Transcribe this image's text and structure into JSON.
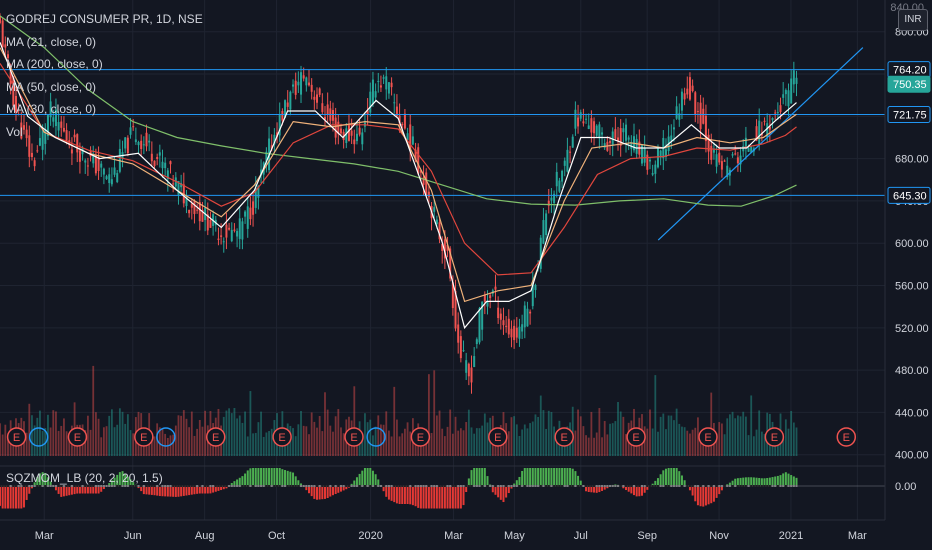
{
  "header": {
    "symbol_line": "GODREJ CONSUMER PR, 1D, NSE",
    "currency": "INR",
    "top_price_label": "840.00"
  },
  "indicators": [
    {
      "label": "MA (21, close, 0)",
      "color": "#ffffff"
    },
    {
      "label": "MA (200, close, 0)",
      "color": "#7fbf6a"
    },
    {
      "label": "MA (50, close, 0)",
      "color": "#e0463d"
    },
    {
      "label": "MA (30, close, 0)",
      "color": "#f0b27a"
    },
    {
      "label": "Vol",
      "color": "#d1d4dc"
    }
  ],
  "oscillator": {
    "label": "SQZMOM_LB (20, 2, 20, 1.5)",
    "zero_label": "0.00"
  },
  "colors": {
    "background": "#131722",
    "up": "#26a69a",
    "down": "#ef5350",
    "hline": "#2196f3",
    "grid": "#1f2431",
    "text": "#d1d4dc",
    "ma21": "#ffffff",
    "ma200": "#7fbf6a",
    "ma50": "#e0463d",
    "ma30": "#f0b27a"
  },
  "chart_data": {
    "type": "candlestick",
    "title": "GODREJ CONSUMER PR, 1D, NSE",
    "y_ticks": [
      400,
      440,
      480,
      520,
      560,
      600,
      640,
      680,
      720,
      760,
      800
    ],
    "ylim": [
      395,
      830
    ],
    "x_labels": [
      {
        "label": "Mar",
        "t": 0.08
      },
      {
        "label": "Jun",
        "t": 0.24
      },
      {
        "label": "Aug",
        "t": 0.37
      },
      {
        "label": "Oct",
        "t": 0.5
      },
      {
        "label": "2020",
        "t": 0.67
      },
      {
        "label": "Mar",
        "t": 0.82
      },
      {
        "label": "May",
        "t": 0.93
      },
      {
        "label": "Jul",
        "t": 1.05
      },
      {
        "label": "Sep",
        "t": 1.17
      },
      {
        "label": "Nov",
        "t": 1.3
      },
      {
        "label": "2021",
        "t": 1.43
      },
      {
        "label": "Mar",
        "t": 1.55
      }
    ],
    "horizontal_levels": [
      {
        "value": 764.2,
        "label": "764.20",
        "style": "outline"
      },
      {
        "value": 750.35,
        "label": "750.35",
        "style": "green"
      },
      {
        "value": 721.75,
        "label": "721.75",
        "style": "outline"
      },
      {
        "value": 645.3,
        "label": "645.30",
        "style": "outline"
      }
    ],
    "trendline": {
      "start": {
        "t": 1.19,
        "price": 603
      },
      "end": {
        "t": 1.56,
        "price": 785
      }
    },
    "price_path": [
      [
        0.0,
        805
      ],
      [
        0.03,
        722
      ],
      [
        0.06,
        675
      ],
      [
        0.09,
        725
      ],
      [
        0.12,
        700
      ],
      [
        0.16,
        680
      ],
      [
        0.2,
        660
      ],
      [
        0.24,
        705
      ],
      [
        0.27,
        690
      ],
      [
        0.3,
        670
      ],
      [
        0.34,
        640
      ],
      [
        0.37,
        625
      ],
      [
        0.4,
        610
      ],
      [
        0.43,
        610
      ],
      [
        0.46,
        640
      ],
      [
        0.49,
        695
      ],
      [
        0.52,
        735
      ],
      [
        0.55,
        760
      ],
      [
        0.58,
        730
      ],
      [
        0.61,
        705
      ],
      [
        0.65,
        700
      ],
      [
        0.68,
        755
      ],
      [
        0.7,
        750
      ],
      [
        0.72,
        720
      ],
      [
        0.74,
        700
      ],
      [
        0.77,
        655
      ],
      [
        0.79,
        615
      ],
      [
        0.81,
        585
      ],
      [
        0.83,
        500
      ],
      [
        0.85,
        470
      ],
      [
        0.87,
        540
      ],
      [
        0.89,
        555
      ],
      [
        0.91,
        525
      ],
      [
        0.93,
        510
      ],
      [
        0.96,
        545
      ],
      [
        0.99,
        640
      ],
      [
        1.02,
        670
      ],
      [
        1.04,
        720
      ],
      [
        1.07,
        710
      ],
      [
        1.1,
        695
      ],
      [
        1.13,
        705
      ],
      [
        1.15,
        690
      ],
      [
        1.18,
        670
      ],
      [
        1.21,
        700
      ],
      [
        1.24,
        750
      ],
      [
        1.27,
        715
      ],
      [
        1.29,
        680
      ],
      [
        1.31,
        670
      ],
      [
        1.34,
        685
      ],
      [
        1.37,
        705
      ],
      [
        1.4,
        720
      ],
      [
        1.43,
        745
      ],
      [
        1.44,
        760
      ]
    ],
    "ma_paths": {
      "ma21": [
        [
          0.0,
          790
        ],
        [
          0.05,
          720
        ],
        [
          0.1,
          700
        ],
        [
          0.18,
          680
        ],
        [
          0.25,
          685
        ],
        [
          0.32,
          650
        ],
        [
          0.4,
          615
        ],
        [
          0.46,
          650
        ],
        [
          0.52,
          725
        ],
        [
          0.57,
          725
        ],
        [
          0.62,
          700
        ],
        [
          0.68,
          735
        ],
        [
          0.72,
          718
        ],
        [
          0.76,
          660
        ],
        [
          0.8,
          600
        ],
        [
          0.84,
          520
        ],
        [
          0.88,
          545
        ],
        [
          0.92,
          545
        ],
        [
          0.96,
          555
        ],
        [
          1.01,
          640
        ],
        [
          1.05,
          700
        ],
        [
          1.1,
          700
        ],
        [
          1.15,
          690
        ],
        [
          1.2,
          690
        ],
        [
          1.25,
          712
        ],
        [
          1.3,
          690
        ],
        [
          1.35,
          690
        ],
        [
          1.4,
          715
        ],
        [
          1.44,
          733
        ]
      ],
      "ma30": [
        [
          0.0,
          785
        ],
        [
          0.08,
          705
        ],
        [
          0.16,
          685
        ],
        [
          0.24,
          675
        ],
        [
          0.32,
          650
        ],
        [
          0.4,
          625
        ],
        [
          0.46,
          655
        ],
        [
          0.53,
          715
        ],
        [
          0.6,
          710
        ],
        [
          0.66,
          715
        ],
        [
          0.72,
          712
        ],
        [
          0.78,
          650
        ],
        [
          0.84,
          545
        ],
        [
          0.9,
          555
        ],
        [
          0.96,
          560
        ],
        [
          1.02,
          640
        ],
        [
          1.07,
          690
        ],
        [
          1.14,
          695
        ],
        [
          1.2,
          690
        ],
        [
          1.26,
          700
        ],
        [
          1.32,
          695
        ],
        [
          1.38,
          700
        ],
        [
          1.44,
          722
        ]
      ],
      "ma50": [
        [
          0.0,
          770
        ],
        [
          0.08,
          705
        ],
        [
          0.16,
          688
        ],
        [
          0.24,
          678
        ],
        [
          0.32,
          658
        ],
        [
          0.4,
          635
        ],
        [
          0.46,
          648
        ],
        [
          0.53,
          695
        ],
        [
          0.6,
          712
        ],
        [
          0.66,
          712
        ],
        [
          0.72,
          708
        ],
        [
          0.78,
          668
        ],
        [
          0.84,
          600
        ],
        [
          0.9,
          570
        ],
        [
          0.96,
          572
        ],
        [
          1.02,
          615
        ],
        [
          1.08,
          665
        ],
        [
          1.14,
          680
        ],
        [
          1.2,
          682
        ],
        [
          1.26,
          690
        ],
        [
          1.32,
          688
        ],
        [
          1.38,
          694
        ],
        [
          1.42,
          702
        ],
        [
          1.44,
          710
        ]
      ],
      "ma200": [
        [
          0.0,
          815
        ],
        [
          0.08,
          785
        ],
        [
          0.16,
          745
        ],
        [
          0.24,
          715
        ],
        [
          0.32,
          700
        ],
        [
          0.4,
          692
        ],
        [
          0.48,
          685
        ],
        [
          0.56,
          680
        ],
        [
          0.64,
          675
        ],
        [
          0.72,
          668
        ],
        [
          0.8,
          655
        ],
        [
          0.88,
          642
        ],
        [
          0.96,
          637
        ],
        [
          1.04,
          636
        ],
        [
          1.12,
          640
        ],
        [
          1.2,
          642
        ],
        [
          1.28,
          636
        ],
        [
          1.34,
          635
        ],
        [
          1.4,
          645
        ],
        [
          1.44,
          655
        ]
      ]
    },
    "earnings_markers": [
      0.03,
      0.14,
      0.26,
      0.39,
      0.51,
      0.64,
      0.76,
      0.9,
      1.02,
      1.15,
      1.28,
      1.4,
      1.53
    ],
    "dividend_markers": [
      0.05,
      0.28,
      0.66
    ]
  }
}
